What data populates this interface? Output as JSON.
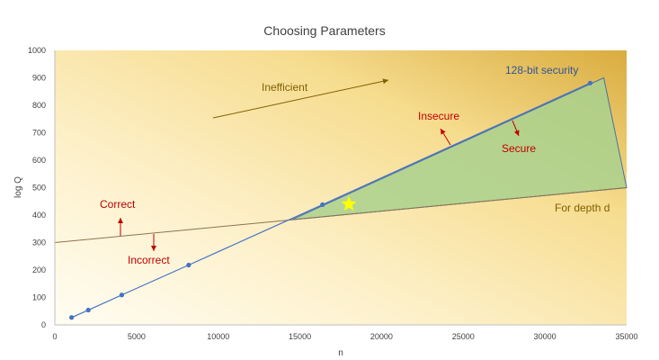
{
  "chart_data": {
    "type": "line",
    "title": "Choosing Parameters",
    "xlabel": "n",
    "ylabel": "log Q",
    "xlim": [
      0,
      35000
    ],
    "ylim": [
      0,
      1000
    ],
    "x_ticks": [
      0,
      5000,
      10000,
      15000,
      20000,
      25000,
      30000,
      35000
    ],
    "y_ticks": [
      0,
      100,
      200,
      300,
      400,
      500,
      600,
      700,
      800,
      900,
      1000
    ],
    "series": [
      {
        "name": "128-bit security",
        "points": [
          [
            1024,
            27
          ],
          [
            2048,
            54
          ],
          [
            4096,
            109
          ],
          [
            8192,
            218
          ],
          [
            16384,
            438
          ],
          [
            32768,
            881
          ]
        ]
      }
    ],
    "correctness_line": [
      [
        0,
        300
      ],
      [
        35000,
        500
      ]
    ],
    "feasible_region": [
      [
        14500,
        383
      ],
      [
        33600,
        900
      ],
      [
        35000,
        500
      ]
    ],
    "highlight_point": [
      18000,
      440
    ],
    "annotations": {
      "security_label": "128-bit security",
      "inefficient": "Inefficient",
      "insecure": "Insecure",
      "secure": "Secure",
      "correct": "Correct",
      "incorrect": "Incorrect",
      "depth": "For depth d"
    },
    "colors": {
      "security_line": "#4472c4",
      "correctness_line": "#8b7350",
      "region_fill": "#a9d18e",
      "star": "#ffff00",
      "label_red": "#c00000",
      "label_blue": "#2f5597",
      "label_olive": "#7f6000"
    },
    "grid": false
  }
}
